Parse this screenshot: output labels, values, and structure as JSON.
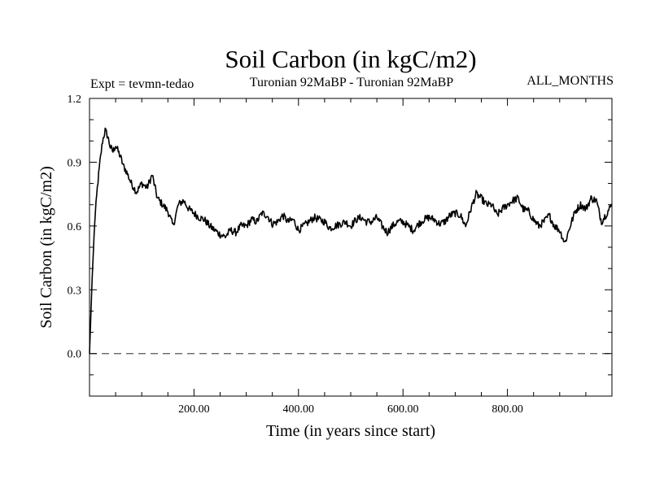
{
  "chart_data": {
    "type": "line",
    "title": "Soil Carbon (in kgC/m2)",
    "subtitle_left": "Expt = tevmn-tedao",
    "subtitle_center": "Turonian  92MaBP - Turonian  92MaBP",
    "subtitle_right": "ALL_MONTHS",
    "xlabel": "Time (in years since start)",
    "ylabel": "Soil Carbon (in kgC/m2)",
    "xlim": [
      0,
      1000
    ],
    "ylim": [
      -0.2,
      1.2
    ],
    "x_ticks": [
      200,
      400,
      600,
      800
    ],
    "x_tick_labels": [
      "200.00",
      "400.00",
      "600.00",
      "800.00"
    ],
    "y_ticks": [
      0.0,
      0.3,
      0.6,
      0.9,
      1.2
    ],
    "y_tick_labels": [
      "0.0",
      "0.3",
      "0.6",
      "0.9",
      "1.2"
    ],
    "reference_line": 0.0,
    "series": [
      {
        "name": "Soil Carbon",
        "x": [
          0,
          5,
          10,
          15,
          20,
          25,
          30,
          35,
          40,
          45,
          50,
          55,
          60,
          65,
          70,
          80,
          90,
          100,
          110,
          120,
          130,
          140,
          150,
          160,
          170,
          180,
          190,
          200,
          210,
          220,
          230,
          240,
          250,
          260,
          270,
          280,
          290,
          300,
          310,
          320,
          330,
          340,
          350,
          360,
          370,
          380,
          390,
          400,
          410,
          420,
          430,
          440,
          450,
          460,
          470,
          480,
          490,
          500,
          510,
          520,
          530,
          540,
          550,
          560,
          570,
          580,
          590,
          600,
          610,
          620,
          630,
          640,
          650,
          660,
          670,
          680,
          690,
          700,
          710,
          720,
          730,
          740,
          750,
          760,
          770,
          780,
          790,
          800,
          810,
          820,
          830,
          840,
          850,
          860,
          870,
          880,
          890,
          900,
          910,
          920,
          930,
          940,
          950,
          960,
          970,
          980,
          990,
          1000
        ],
        "values": [
          0.0,
          0.35,
          0.62,
          0.78,
          0.9,
          1.0,
          1.05,
          1.02,
          0.97,
          0.95,
          0.98,
          0.95,
          0.92,
          0.88,
          0.86,
          0.8,
          0.76,
          0.8,
          0.78,
          0.84,
          0.73,
          0.7,
          0.67,
          0.6,
          0.7,
          0.72,
          0.68,
          0.66,
          0.64,
          0.63,
          0.6,
          0.58,
          0.56,
          0.55,
          0.58,
          0.57,
          0.6,
          0.6,
          0.63,
          0.62,
          0.66,
          0.65,
          0.61,
          0.62,
          0.65,
          0.62,
          0.63,
          0.58,
          0.6,
          0.62,
          0.64,
          0.63,
          0.62,
          0.59,
          0.6,
          0.61,
          0.62,
          0.6,
          0.63,
          0.64,
          0.62,
          0.62,
          0.64,
          0.6,
          0.57,
          0.6,
          0.62,
          0.62,
          0.6,
          0.58,
          0.61,
          0.63,
          0.64,
          0.63,
          0.61,
          0.62,
          0.65,
          0.66,
          0.65,
          0.6,
          0.68,
          0.75,
          0.73,
          0.7,
          0.7,
          0.65,
          0.68,
          0.7,
          0.72,
          0.73,
          0.68,
          0.67,
          0.63,
          0.6,
          0.62,
          0.65,
          0.6,
          0.58,
          0.52,
          0.6,
          0.67,
          0.7,
          0.68,
          0.73,
          0.72,
          0.62,
          0.66,
          0.7
        ]
      }
    ]
  }
}
